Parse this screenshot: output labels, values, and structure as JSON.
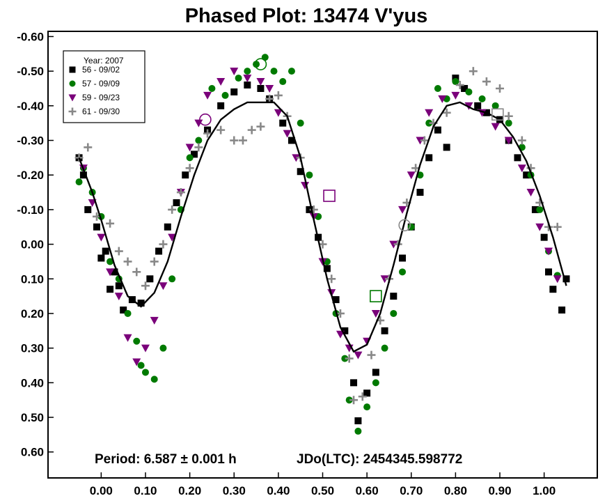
{
  "chart_data": {
    "type": "scatter",
    "title": "Phased Plot: 13474  V'yus",
    "xlabel": "",
    "ylabel": "",
    "xlim": [
      -0.12,
      1.12
    ],
    "ylim": [
      0.675,
      -0.615
    ],
    "y_inverted": true,
    "grid": false,
    "legend_position": "top-left",
    "legend_title": "Year: 2007",
    "x_ticks": [
      "0.00",
      "0.10",
      "0.20",
      "0.30",
      "0.40",
      "0.50",
      "0.60",
      "0.70",
      "0.80",
      "0.90",
      "1.00"
    ],
    "x_tick_values": [
      0,
      0.1,
      0.2,
      0.3,
      0.4,
      0.5,
      0.6,
      0.7,
      0.8,
      0.9,
      1.0
    ],
    "y_ticks": [
      "-0.60",
      "-0.50",
      "-0.40",
      "-0.30",
      "-0.20",
      "-0.10",
      "0.00",
      "0.10",
      "0.20",
      "0.30",
      "0.40",
      "0.50",
      "0.60"
    ],
    "y_tick_values": [
      -0.6,
      -0.5,
      -0.4,
      -0.3,
      -0.2,
      -0.1,
      0,
      0.1,
      0.2,
      0.3,
      0.4,
      0.5,
      0.6
    ],
    "annotation_period": "Period: 6.587 ± 0.001 h",
    "annotation_jd": "JDo(LTC): 2454345.598772",
    "series": [
      {
        "name": "56 - 09/02",
        "marker": "square",
        "color": "#000000",
        "points": [
          [
            -0.05,
            -0.25
          ],
          [
            -0.04,
            -0.2
          ],
          [
            -0.03,
            -0.1
          ],
          [
            -0.01,
            -0.05
          ],
          [
            0.0,
            0.04
          ],
          [
            0.01,
            0.02
          ],
          [
            0.02,
            0.13
          ],
          [
            0.03,
            0.08
          ],
          [
            0.04,
            0.12
          ],
          [
            0.05,
            0.19
          ],
          [
            0.07,
            0.16
          ],
          [
            0.09,
            0.17
          ],
          [
            0.11,
            0.1
          ],
          [
            0.13,
            0.02
          ],
          [
            0.15,
            -0.05
          ],
          [
            0.17,
            -0.12
          ],
          [
            0.19,
            -0.2
          ],
          [
            0.21,
            -0.26
          ],
          [
            0.24,
            -0.33
          ],
          [
            0.27,
            -0.4
          ],
          [
            0.3,
            -0.44
          ],
          [
            0.33,
            -0.46
          ],
          [
            0.36,
            -0.45
          ],
          [
            0.38,
            -0.42
          ],
          [
            0.41,
            -0.35
          ],
          [
            0.43,
            -0.3
          ],
          [
            0.45,
            -0.21
          ],
          [
            0.47,
            -0.1
          ],
          [
            0.49,
            -0.02
          ],
          [
            0.51,
            0.07
          ],
          [
            0.53,
            0.16
          ],
          [
            0.55,
            0.25
          ],
          [
            0.57,
            0.4
          ],
          [
            0.58,
            0.51
          ],
          [
            0.6,
            0.43
          ],
          [
            0.62,
            0.37
          ],
          [
            0.64,
            0.25
          ],
          [
            0.66,
            0.15
          ],
          [
            0.68,
            0.04
          ],
          [
            0.7,
            -0.05
          ],
          [
            0.72,
            -0.15
          ],
          [
            0.74,
            -0.25
          ],
          [
            0.76,
            -0.33
          ],
          [
            0.78,
            -0.28
          ],
          [
            0.8,
            -0.48
          ],
          [
            0.82,
            -0.45
          ],
          [
            0.85,
            -0.4
          ],
          [
            0.87,
            -0.38
          ],
          [
            0.9,
            -0.36
          ],
          [
            0.92,
            -0.3
          ],
          [
            0.94,
            -0.25
          ],
          [
            0.96,
            -0.2
          ],
          [
            0.98,
            -0.1
          ],
          [
            1.0,
            -0.02
          ],
          [
            1.01,
            0.08
          ],
          [
            1.02,
            0.13
          ],
          [
            1.04,
            0.19
          ],
          [
            1.05,
            0.1
          ]
        ]
      },
      {
        "name": "57 - 09/09",
        "marker": "circle",
        "color": "#007a00",
        "points": [
          [
            -0.05,
            -0.18
          ],
          [
            -0.04,
            -0.22
          ],
          [
            -0.02,
            -0.15
          ],
          [
            0.0,
            -0.08
          ],
          [
            0.02,
            0.05
          ],
          [
            0.04,
            0.1
          ],
          [
            0.06,
            0.2
          ],
          [
            0.08,
            0.28
          ],
          [
            0.09,
            0.35
          ],
          [
            0.1,
            0.37
          ],
          [
            0.12,
            0.39
          ],
          [
            0.14,
            0.3
          ],
          [
            0.16,
            0.1
          ],
          [
            0.18,
            -0.1
          ],
          [
            0.2,
            -0.25
          ],
          [
            0.22,
            -0.3
          ],
          [
            0.25,
            -0.45
          ],
          [
            0.28,
            -0.43
          ],
          [
            0.31,
            -0.48
          ],
          [
            0.33,
            -0.5
          ],
          [
            0.35,
            -0.52
          ],
          [
            0.37,
            -0.54
          ],
          [
            0.39,
            -0.5
          ],
          [
            0.41,
            -0.47
          ],
          [
            0.43,
            -0.5
          ],
          [
            0.45,
            -0.35
          ],
          [
            0.47,
            -0.2
          ],
          [
            0.49,
            -0.08
          ],
          [
            0.51,
            0.05
          ],
          [
            0.53,
            0.2
          ],
          [
            0.55,
            0.33
          ],
          [
            0.56,
            0.45
          ],
          [
            0.58,
            0.54
          ],
          [
            0.6,
            0.47
          ],
          [
            0.62,
            0.4
          ],
          [
            0.64,
            0.3
          ],
          [
            0.66,
            0.2
          ],
          [
            0.68,
            0.08
          ],
          [
            0.7,
            -0.05
          ],
          [
            0.72,
            -0.2
          ],
          [
            0.74,
            -0.35
          ],
          [
            0.76,
            -0.45
          ],
          [
            0.78,
            -0.42
          ],
          [
            0.8,
            -0.47
          ],
          [
            0.83,
            -0.44
          ],
          [
            0.86,
            -0.42
          ],
          [
            0.89,
            -0.4
          ],
          [
            0.92,
            -0.35
          ],
          [
            0.95,
            -0.28
          ],
          [
            0.97,
            -0.2
          ],
          [
            0.99,
            -0.1
          ],
          [
            1.01,
            0.02
          ],
          [
            1.03,
            0.09
          ]
        ]
      },
      {
        "name": "59 - 09/23",
        "marker": "triangle-down",
        "color": "#7a007a",
        "points": [
          [
            -0.04,
            -0.22
          ],
          [
            -0.02,
            -0.12
          ],
          [
            0.0,
            -0.02
          ],
          [
            0.02,
            0.08
          ],
          [
            0.04,
            0.15
          ],
          [
            0.06,
            0.27
          ],
          [
            0.08,
            0.34
          ],
          [
            0.1,
            0.3
          ],
          [
            0.12,
            0.22
          ],
          [
            0.14,
            0.12
          ],
          [
            0.16,
            -0.02
          ],
          [
            0.18,
            -0.15
          ],
          [
            0.2,
            -0.28
          ],
          [
            0.22,
            -0.35
          ],
          [
            0.24,
            -0.43
          ],
          [
            0.27,
            -0.47
          ],
          [
            0.3,
            -0.5
          ],
          [
            0.33,
            -0.48
          ],
          [
            0.36,
            -0.47
          ],
          [
            0.38,
            -0.45
          ],
          [
            0.4,
            -0.38
          ],
          [
            0.42,
            -0.32
          ],
          [
            0.44,
            -0.25
          ],
          [
            0.46,
            -0.17
          ],
          [
            0.48,
            -0.08
          ],
          [
            0.5,
            0.05
          ],
          [
            0.52,
            0.14
          ],
          [
            0.54,
            0.26
          ],
          [
            0.56,
            0.3
          ],
          [
            0.58,
            0.32
          ],
          [
            0.6,
            0.28
          ],
          [
            0.62,
            0.2
          ],
          [
            0.64,
            0.1
          ],
          [
            0.66,
            0.0
          ],
          [
            0.68,
            -0.1
          ],
          [
            0.7,
            -0.2
          ],
          [
            0.72,
            -0.3
          ],
          [
            0.74,
            -0.38
          ],
          [
            0.77,
            -0.42
          ],
          [
            0.8,
            -0.43
          ],
          [
            0.83,
            -0.4
          ],
          [
            0.86,
            -0.38
          ],
          [
            0.89,
            -0.34
          ],
          [
            0.92,
            -0.3
          ],
          [
            0.95,
            -0.22
          ],
          [
            0.97,
            -0.15
          ],
          [
            0.99,
            -0.05
          ],
          [
            1.01,
            0.02
          ],
          [
            1.03,
            0.1
          ]
        ]
      },
      {
        "name": "61 - 09/30",
        "marker": "plus",
        "color": "#888888",
        "points": [
          [
            -0.05,
            -0.25
          ],
          [
            -0.03,
            -0.28
          ],
          [
            -0.01,
            -0.08
          ],
          [
            0.02,
            -0.06
          ],
          [
            0.04,
            0.02
          ],
          [
            0.06,
            0.05
          ],
          [
            0.08,
            0.08
          ],
          [
            0.1,
            0.12
          ],
          [
            0.12,
            0.05
          ],
          [
            0.14,
            0.0
          ],
          [
            0.16,
            -0.1
          ],
          [
            0.18,
            -0.15
          ],
          [
            0.2,
            -0.22
          ],
          [
            0.22,
            -0.28
          ],
          [
            0.24,
            -0.32
          ],
          [
            0.27,
            -0.33
          ],
          [
            0.3,
            -0.3
          ],
          [
            0.32,
            -0.3
          ],
          [
            0.34,
            -0.33
          ],
          [
            0.36,
            -0.34
          ],
          [
            0.38,
            -0.42
          ],
          [
            0.4,
            -0.43
          ],
          [
            0.42,
            -0.37
          ],
          [
            0.45,
            -0.25
          ],
          [
            0.48,
            -0.1
          ],
          [
            0.5,
            0.0
          ],
          [
            0.52,
            0.1
          ],
          [
            0.54,
            0.2
          ],
          [
            0.56,
            0.33
          ],
          [
            0.57,
            0.45
          ],
          [
            0.59,
            0.44
          ],
          [
            0.61,
            0.32
          ],
          [
            0.63,
            0.22
          ],
          [
            0.65,
            0.1
          ],
          [
            0.67,
            0.0
          ],
          [
            0.69,
            -0.12
          ],
          [
            0.71,
            -0.22
          ],
          [
            0.73,
            -0.3
          ],
          [
            0.75,
            -0.35
          ],
          [
            0.78,
            -0.38
          ],
          [
            0.81,
            -0.46
          ],
          [
            0.84,
            -0.5
          ],
          [
            0.87,
            -0.47
          ],
          [
            0.9,
            -0.45
          ],
          [
            0.92,
            -0.37
          ],
          [
            0.95,
            -0.3
          ],
          [
            0.97,
            -0.22
          ],
          [
            0.99,
            -0.12
          ],
          [
            1.01,
            -0.05
          ],
          [
            1.03,
            -0.05
          ]
        ]
      }
    ],
    "fit_curve": {
      "x": [
        -0.05,
        -0.02,
        0.0,
        0.03,
        0.06,
        0.09,
        0.12,
        0.15,
        0.18,
        0.21,
        0.24,
        0.27,
        0.3,
        0.33,
        0.36,
        0.39,
        0.42,
        0.45,
        0.48,
        0.51,
        0.54,
        0.57,
        0.6,
        0.63,
        0.66,
        0.69,
        0.72,
        0.75,
        0.78,
        0.81,
        0.84,
        0.87,
        0.9,
        0.93,
        0.96,
        0.99,
        1.02,
        1.05
      ],
      "y": [
        -0.25,
        -0.15,
        -0.07,
        0.06,
        0.15,
        0.18,
        0.14,
        0.05,
        -0.08,
        -0.2,
        -0.3,
        -0.36,
        -0.39,
        -0.41,
        -0.41,
        -0.41,
        -0.37,
        -0.25,
        -0.07,
        0.1,
        0.24,
        0.31,
        0.29,
        0.2,
        0.06,
        -0.09,
        -0.23,
        -0.34,
        -0.4,
        -0.41,
        -0.39,
        -0.38,
        -0.36,
        -0.31,
        -0.24,
        -0.14,
        -0.02,
        0.12
      ]
    },
    "extra_markers": [
      {
        "shape": "circle-open",
        "color": "#7a007a",
        "x": 0.235,
        "y": -0.36
      },
      {
        "shape": "circle-open",
        "color": "#007a00",
        "x": 0.36,
        "y": -0.52
      },
      {
        "shape": "square-open",
        "color": "#7a007a",
        "x": 0.515,
        "y": -0.14
      },
      {
        "shape": "square-open",
        "color": "#007a00",
        "x": 0.62,
        "y": 0.15
      },
      {
        "shape": "circle-open",
        "color": "#888888",
        "x": 0.685,
        "y": -0.055
      },
      {
        "shape": "square-open",
        "color": "#888888",
        "x": 0.895,
        "y": -0.375
      }
    ]
  }
}
